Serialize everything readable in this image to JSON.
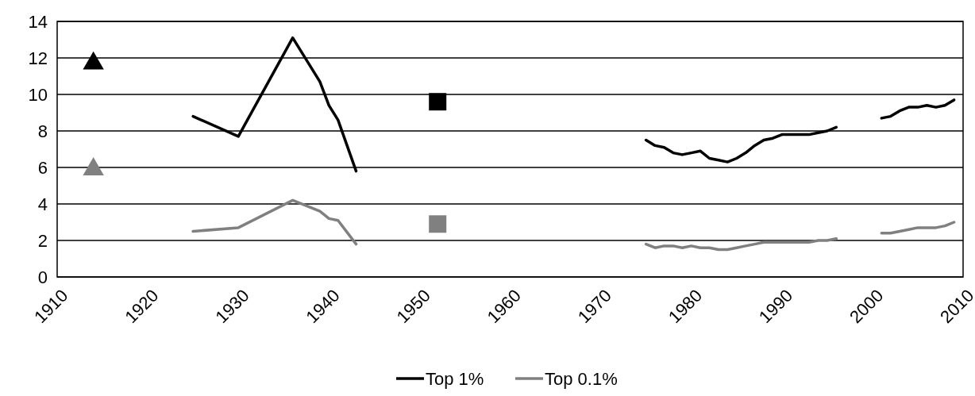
{
  "chart_data": {
    "type": "line",
    "xlim": [
      1910,
      2010
    ],
    "xticks": [
      1910,
      1920,
      1930,
      1940,
      1950,
      1960,
      1970,
      1980,
      1990,
      2000,
      2010
    ],
    "ylim": [
      0,
      14
    ],
    "yticks": [
      0,
      2,
      4,
      6,
      8,
      10,
      12,
      14
    ],
    "grid": "y",
    "legend": "bottom",
    "series": [
      {
        "name": "Top 1%",
        "color": "#000000",
        "x": [
          1925,
          1930,
          1936,
          1939,
          1940,
          1941,
          1943,
          1944,
          1975,
          1976,
          1977,
          1978,
          1979,
          1980,
          1981,
          1982,
          1983,
          1984,
          1985,
          1986,
          1987,
          1988,
          1989,
          1990,
          1991,
          1992,
          1993,
          1994,
          1995,
          1996,
          1997,
          2001,
          2002,
          2003,
          2004,
          2005,
          2006,
          2007,
          2008,
          2009
        ],
        "values": [
          8.8,
          7.7,
          13.1,
          10.7,
          9.4,
          8.6,
          5.8,
          null,
          7.5,
          7.2,
          7.1,
          6.8,
          6.7,
          6.8,
          6.9,
          6.5,
          6.4,
          6.3,
          6.5,
          6.8,
          7.2,
          7.5,
          7.6,
          7.8,
          7.8,
          7.8,
          7.8,
          7.9,
          8.0,
          8.2,
          null,
          8.7,
          8.8,
          9.1,
          9.3,
          9.3,
          9.4,
          9.3,
          9.4,
          9.7
        ]
      },
      {
        "name": "Top 0.1%",
        "color": "#808080",
        "x": [
          1925,
          1930,
          1936,
          1939,
          1940,
          1941,
          1943,
          1944,
          1975,
          1976,
          1977,
          1978,
          1979,
          1980,
          1981,
          1982,
          1983,
          1984,
          1985,
          1986,
          1987,
          1988,
          1989,
          1990,
          1991,
          1992,
          1993,
          1994,
          1995,
          1996,
          1997,
          2001,
          2002,
          2003,
          2004,
          2005,
          2006,
          2007,
          2008,
          2009
        ],
        "values": [
          2.5,
          2.7,
          4.2,
          3.6,
          3.2,
          3.1,
          1.8,
          null,
          1.8,
          1.6,
          1.7,
          1.7,
          1.6,
          1.7,
          1.6,
          1.6,
          1.5,
          1.5,
          1.6,
          1.7,
          1.8,
          1.9,
          1.9,
          1.9,
          1.9,
          1.9,
          1.9,
          2.0,
          2.0,
          2.1,
          null,
          2.4,
          2.4,
          2.5,
          2.6,
          2.7,
          2.7,
          2.7,
          2.8,
          3.0
        ]
      },
      {
        "type": "scatter",
        "marker": "triangle",
        "color": "#000000",
        "x": [
          1914
        ],
        "values": [
          11.7
        ]
      },
      {
        "type": "scatter",
        "marker": "triangle",
        "color": "#808080",
        "x": [
          1914
        ],
        "values": [
          5.9
        ]
      },
      {
        "type": "scatter",
        "marker": "square",
        "color": "#000000",
        "x": [
          1952
        ],
        "values": [
          9.6
        ]
      },
      {
        "type": "scatter",
        "marker": "square",
        "color": "#808080",
        "x": [
          1952
        ],
        "values": [
          2.9
        ]
      }
    ]
  }
}
